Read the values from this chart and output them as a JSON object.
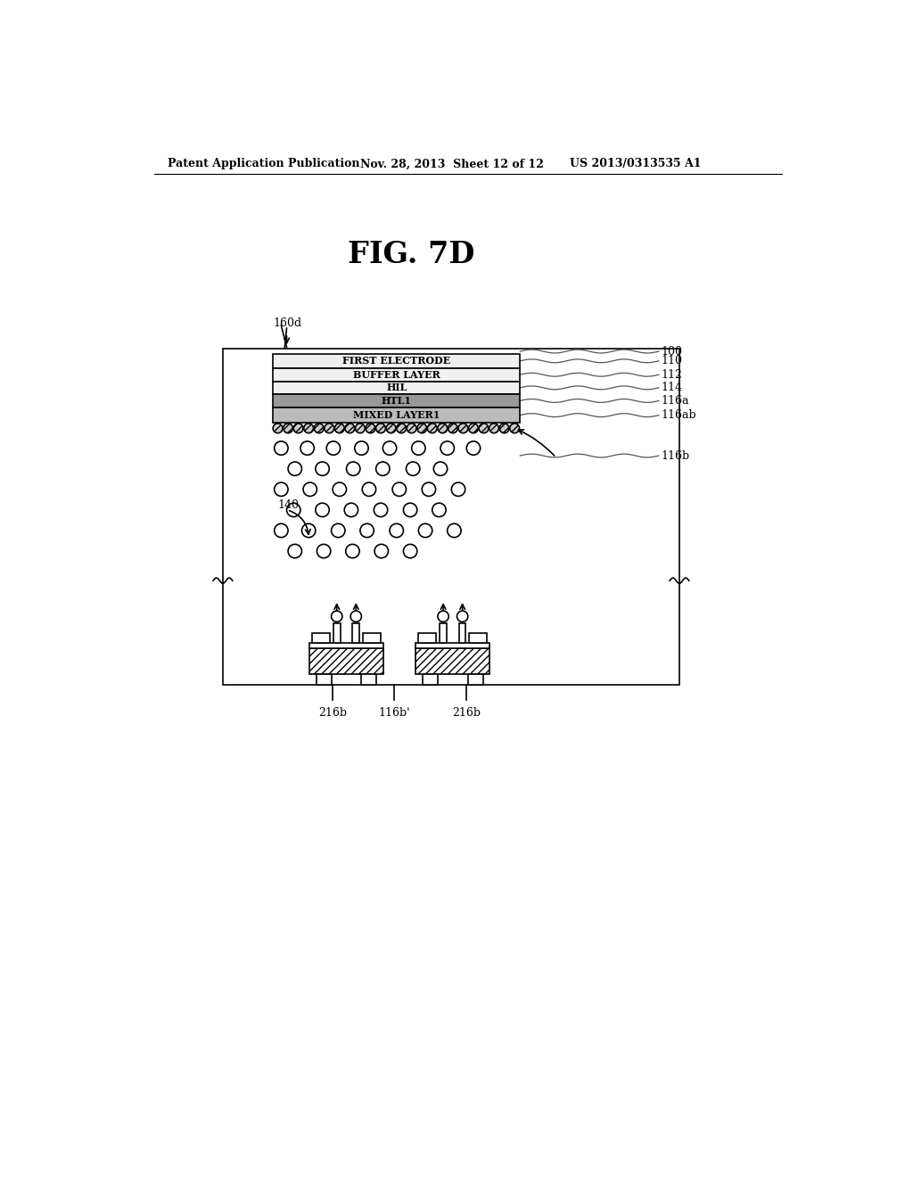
{
  "header_left": "Patent Application Publication",
  "header_mid": "Nov. 28, 2013  Sheet 12 of 12",
  "header_right": "US 2013/0313535 A1",
  "fig_title": "FIG. 7D",
  "label_160d": "160d",
  "label_100": "100",
  "label_110": "110",
  "label_112": "112",
  "label_114": "114",
  "label_116a": "116a",
  "label_116ab": "116ab",
  "label_116b": "116b",
  "label_140": "140",
  "label_216b_left": "216b",
  "label_116b_prime": "116b'",
  "label_216b_right": "216b",
  "layer_labels": [
    "FIRST ELECTRODE",
    "BUFFER LAYER",
    "HIL",
    "HTL1",
    "MIXED LAYER1"
  ],
  "bg_color": "#ffffff",
  "line_color": "#000000"
}
